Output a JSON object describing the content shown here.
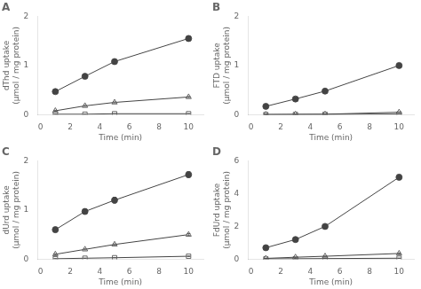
{
  "chart_data": [
    {
      "type": "line",
      "title": "A",
      "x_label": "Time (min)",
      "y_label": "dThd uptake\n(μmol / mg protein)",
      "x": [
        1,
        3,
        5,
        10
      ],
      "xlim": [
        -0.2,
        11
      ],
      "xticks": [
        0,
        2,
        4,
        6,
        8,
        10
      ],
      "ylim": [
        0,
        2
      ],
      "yticks": [
        0,
        1,
        2
      ],
      "grid": false,
      "series": [
        {
          "color": "#444444",
          "marker": "circle",
          "values": [
            0.47,
            0.78,
            1.08,
            1.55
          ],
          "yerr": [
            0.03,
            0.04,
            0.05,
            0.05
          ]
        },
        {
          "color": "#444444",
          "marker": "triangle-open",
          "values": [
            0.08,
            0.18,
            0.25,
            0.36
          ],
          "yerr": [
            0.01,
            0.01,
            0.01,
            0.01
          ]
        },
        {
          "color": "#444444",
          "marker": "square-open",
          "values": [
            0.01,
            0.01,
            0.02,
            0.02
          ],
          "yerr": [
            0.003,
            0.003,
            0.003,
            0.003
          ]
        }
      ]
    },
    {
      "type": "line",
      "title": "B",
      "x_label": "Time (min)",
      "y_label": "FTD uptake\n(μmol / mg protein)",
      "x": [
        1,
        3,
        5,
        10
      ],
      "xlim": [
        -0.2,
        11
      ],
      "xticks": [
        0,
        2,
        4,
        6,
        8,
        10
      ],
      "ylim": [
        0,
        2
      ],
      "yticks": [
        0,
        1,
        2
      ],
      "grid": false,
      "series": [
        {
          "color": "#444444",
          "marker": "circle",
          "values": [
            0.17,
            0.32,
            0.48,
            1.0
          ],
          "yerr": [
            0.01,
            0.02,
            0.02,
            0.03
          ]
        },
        {
          "color": "#444444",
          "marker": "triangle-open",
          "values": [
            0.005,
            0.008,
            0.01,
            0.05
          ],
          "yerr": [
            0.002,
            0.002,
            0.002,
            0.005
          ]
        },
        {
          "color": "#444444",
          "marker": "square-open",
          "values": [
            0.003,
            0.005,
            0.007,
            0.015
          ],
          "yerr": [
            0.001,
            0.001,
            0.002,
            0.003
          ]
        }
      ]
    },
    {
      "type": "line",
      "title": "C",
      "x_label": "Time (min)",
      "y_label": "dUrd uptake\n(μmol / mg protein)",
      "x": [
        1,
        3,
        5,
        10
      ],
      "xlim": [
        -0.2,
        11
      ],
      "xticks": [
        0,
        2,
        4,
        6,
        8,
        10
      ],
      "ylim": [
        0,
        2
      ],
      "yticks": [
        0,
        1,
        2
      ],
      "grid": false,
      "series": [
        {
          "color": "#444444",
          "marker": "circle",
          "values": [
            0.6,
            0.97,
            1.2,
            1.72
          ],
          "yerr": [
            0.05,
            0.05,
            0.06,
            0.06
          ]
        },
        {
          "color": "#444444",
          "marker": "triangle-open",
          "values": [
            0.1,
            0.2,
            0.3,
            0.5
          ],
          "yerr": [
            0.01,
            0.01,
            0.01,
            0.02
          ]
        },
        {
          "color": "#444444",
          "marker": "square-open",
          "values": [
            0.01,
            0.02,
            0.03,
            0.06
          ],
          "yerr": [
            0.003,
            0.003,
            0.004,
            0.005
          ]
        }
      ]
    },
    {
      "type": "line",
      "title": "D",
      "x_label": "Time (min)",
      "y_label": "FdUrd uptake\n(μmol / mg protein)",
      "x": [
        1,
        3,
        5,
        10
      ],
      "xlim": [
        -0.2,
        11
      ],
      "xticks": [
        0,
        2,
        4,
        6,
        8,
        10
      ],
      "ylim": [
        0,
        6
      ],
      "yticks": [
        0,
        2,
        4,
        6
      ],
      "grid": false,
      "series": [
        {
          "color": "#444444",
          "marker": "circle",
          "values": [
            0.7,
            1.2,
            2.0,
            5.0
          ],
          "yerr": [
            0.05,
            0.08,
            0.1,
            0.15
          ]
        },
        {
          "color": "#444444",
          "marker": "triangle-open",
          "values": [
            0.05,
            0.12,
            0.18,
            0.35
          ],
          "yerr": [
            0.01,
            0.02,
            0.02,
            0.03
          ]
        },
        {
          "color": "#444444",
          "marker": "square-open",
          "values": [
            0.02,
            0.03,
            0.04,
            0.06
          ],
          "yerr": [
            0.005,
            0.005,
            0.007,
            0.008
          ]
        }
      ]
    }
  ]
}
